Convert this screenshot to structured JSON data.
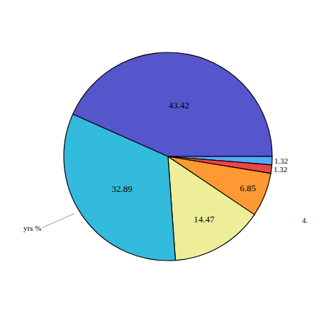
{
  "chart_data": {
    "type": "pie",
    "values": [
      43.42,
      1.32,
      1.32,
      6.85,
      14.47,
      32.89
    ],
    "colors": [
      "#5555cc",
      "#55aaff",
      "#ee4444",
      "#ff9933",
      "#eeee99",
      "#33bbdd"
    ],
    "data_labels": true,
    "annotations": [
      {
        "text": "4."
      },
      {
        "text": "yrs %"
      }
    ]
  }
}
